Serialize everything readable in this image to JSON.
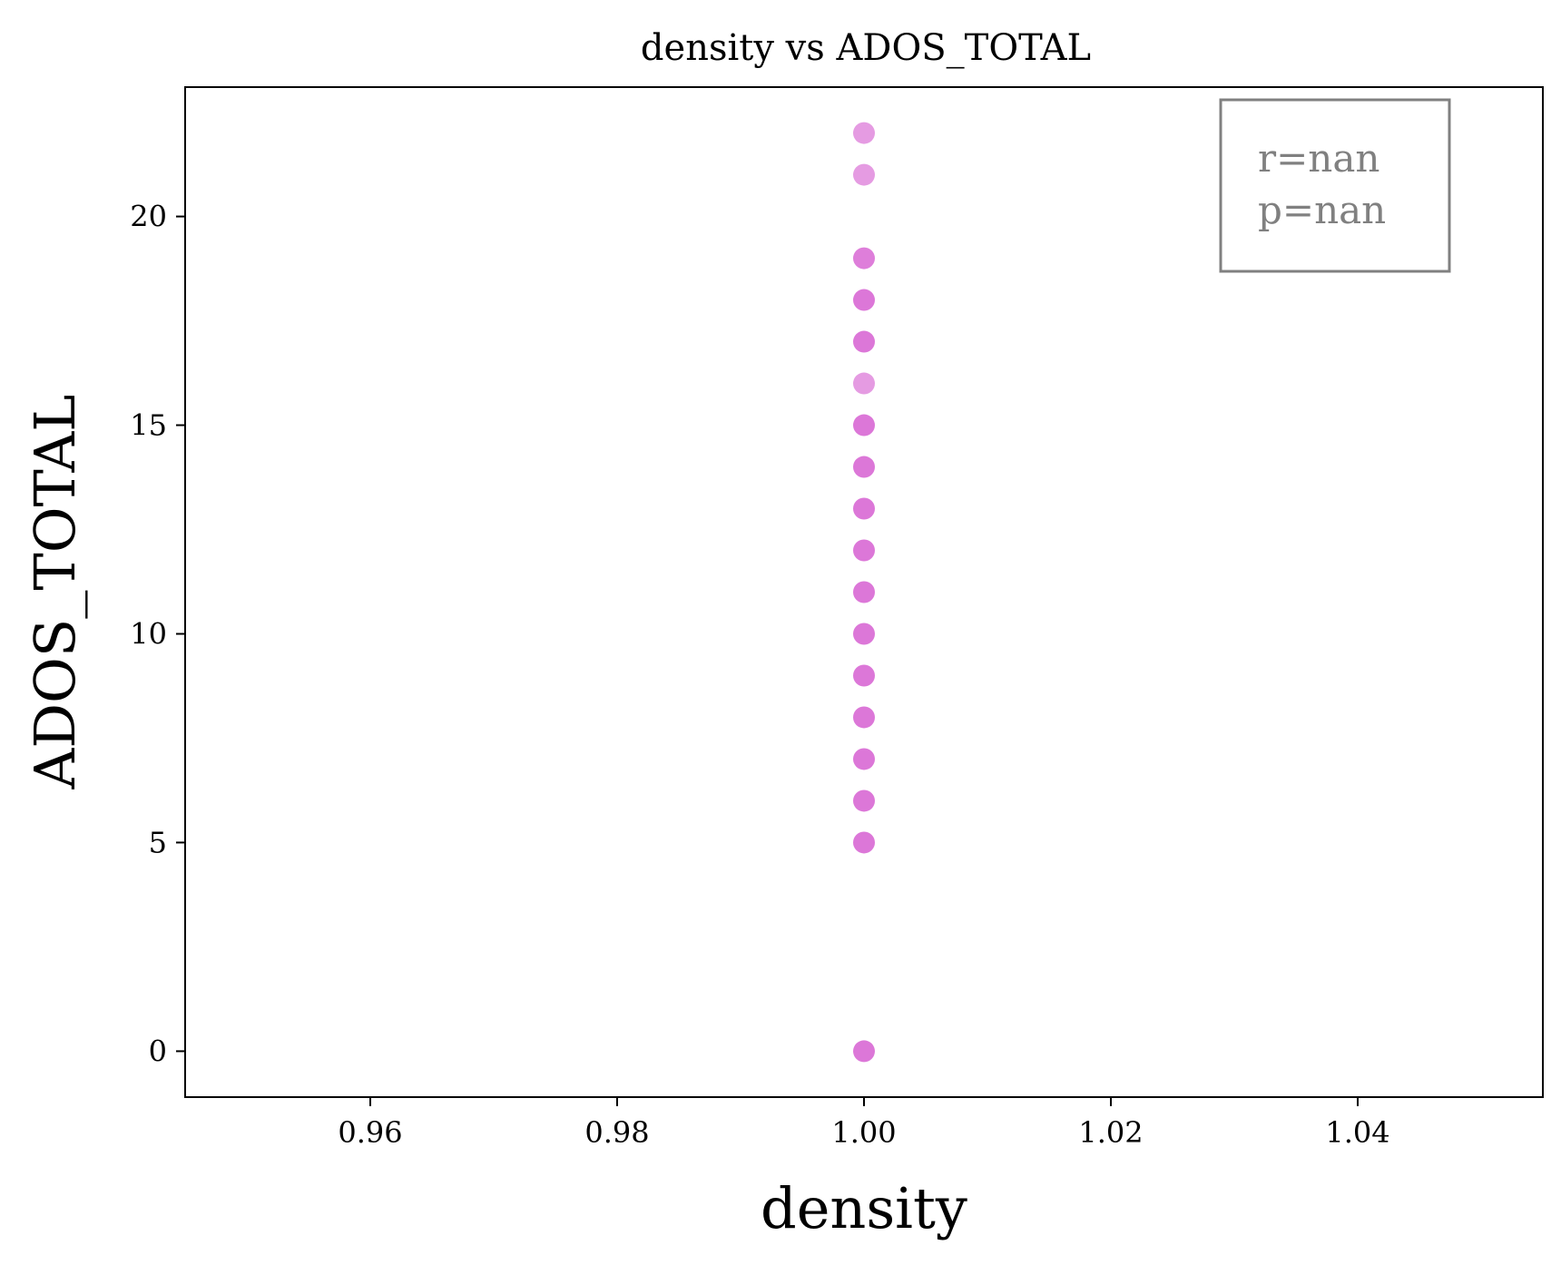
{
  "chart_data": {
    "type": "scatter",
    "title": "density vs ADOS_TOTAL",
    "xlabel": "density",
    "ylabel": "ADOS_TOTAL",
    "xlim": [
      0.945,
      1.055
    ],
    "ylim": [
      -1.1,
      23.1
    ],
    "xticks": [
      0.96,
      0.98,
      1.0,
      1.02,
      1.04
    ],
    "xtick_labels": [
      "0.96",
      "0.98",
      "1.00",
      "1.02",
      "1.04"
    ],
    "yticks": [
      0,
      5,
      10,
      15,
      20
    ],
    "ytick_labels": [
      "0",
      "5",
      "10",
      "15",
      "20"
    ],
    "grid": false,
    "marker_color": "#da70d6",
    "points": [
      {
        "x": 1.0,
        "y": 22,
        "alpha": 0.7
      },
      {
        "x": 1.0,
        "y": 21,
        "alpha": 0.7
      },
      {
        "x": 1.0,
        "y": 19,
        "alpha": 0.9
      },
      {
        "x": 1.0,
        "y": 18,
        "alpha": 0.95
      },
      {
        "x": 1.0,
        "y": 17,
        "alpha": 0.95
      },
      {
        "x": 1.0,
        "y": 16,
        "alpha": 0.7
      },
      {
        "x": 1.0,
        "y": 15,
        "alpha": 0.95
      },
      {
        "x": 1.0,
        "y": 14,
        "alpha": 0.95
      },
      {
        "x": 1.0,
        "y": 13,
        "alpha": 0.95
      },
      {
        "x": 1.0,
        "y": 12,
        "alpha": 0.95
      },
      {
        "x": 1.0,
        "y": 11,
        "alpha": 0.95
      },
      {
        "x": 1.0,
        "y": 10,
        "alpha": 0.95
      },
      {
        "x": 1.0,
        "y": 9,
        "alpha": 0.95
      },
      {
        "x": 1.0,
        "y": 8,
        "alpha": 0.95
      },
      {
        "x": 1.0,
        "y": 7,
        "alpha": 0.95
      },
      {
        "x": 1.0,
        "y": 6,
        "alpha": 0.95
      },
      {
        "x": 1.0,
        "y": 5,
        "alpha": 0.95
      },
      {
        "x": 1.0,
        "y": 0,
        "alpha": 0.95
      }
    ],
    "annotation": {
      "lines": [
        "r=nan",
        "p=nan"
      ],
      "placement": "top-right",
      "color": "#808080"
    }
  }
}
